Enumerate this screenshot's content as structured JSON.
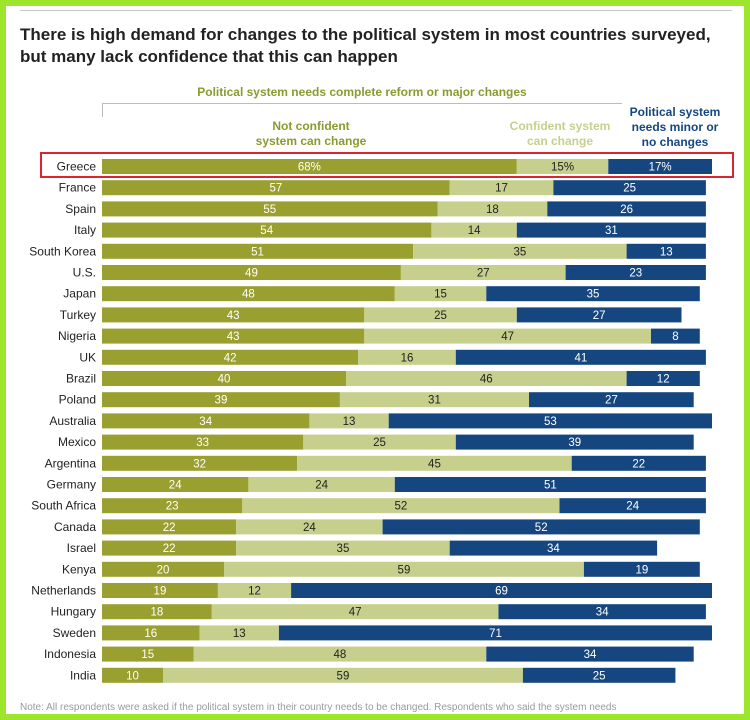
{
  "chart_data": {
    "type": "bar",
    "orientation": "horizontal",
    "stacked": true,
    "title": "There is high demand for changes to the political system in most countries surveyed, but many lack confidence that this can happen",
    "group_header": "Political system needs complete reform or major changes",
    "legend": {
      "not_confident": [
        "Not confident",
        "system can change"
      ],
      "confident": [
        "Confident system",
        "can change"
      ],
      "minor": [
        "Political system",
        "needs minor or",
        "no changes"
      ]
    },
    "categories": [
      "Greece",
      "France",
      "Spain",
      "Italy",
      "South Korea",
      "U.S.",
      "Japan",
      "Turkey",
      "Nigeria",
      "UK",
      "Brazil",
      "Poland",
      "Australia",
      "Mexico",
      "Argentina",
      "Germany",
      "South Africa",
      "Canada",
      "Israel",
      "Kenya",
      "Netherlands",
      "Hungary",
      "Sweden",
      "Indonesia",
      "India"
    ],
    "series": [
      {
        "name": "Not confident system can change",
        "color": "#9aa02f",
        "label_color": "#ffffff",
        "values": [
          68,
          57,
          55,
          54,
          51,
          49,
          48,
          43,
          43,
          42,
          40,
          39,
          34,
          33,
          32,
          24,
          23,
          22,
          22,
          20,
          19,
          18,
          16,
          15,
          10
        ]
      },
      {
        "name": "Confident system can change",
        "color": "#c6d08c",
        "label_color": "#222222",
        "values": [
          15,
          17,
          18,
          14,
          35,
          27,
          15,
          25,
          47,
          16,
          46,
          31,
          13,
          25,
          45,
          24,
          52,
          24,
          35,
          59,
          12,
          47,
          13,
          48,
          59
        ]
      },
      {
        "name": "Political system needs minor or no changes",
        "color": "#15467f",
        "label_color": "#ffffff",
        "values": [
          17,
          25,
          26,
          31,
          13,
          23,
          35,
          27,
          8,
          41,
          12,
          27,
          53,
          39,
          22,
          51,
          24,
          52,
          34,
          19,
          69,
          34,
          71,
          34,
          25
        ]
      }
    ],
    "value_labels": {
      "Greece": [
        "68%",
        "15%",
        "17%"
      ]
    },
    "xlim": [
      0,
      100
    ],
    "highlight": "Greece",
    "note": "Note: All respondents were asked if the political system in their country needs to be changed. Respondents who said the system needs"
  }
}
